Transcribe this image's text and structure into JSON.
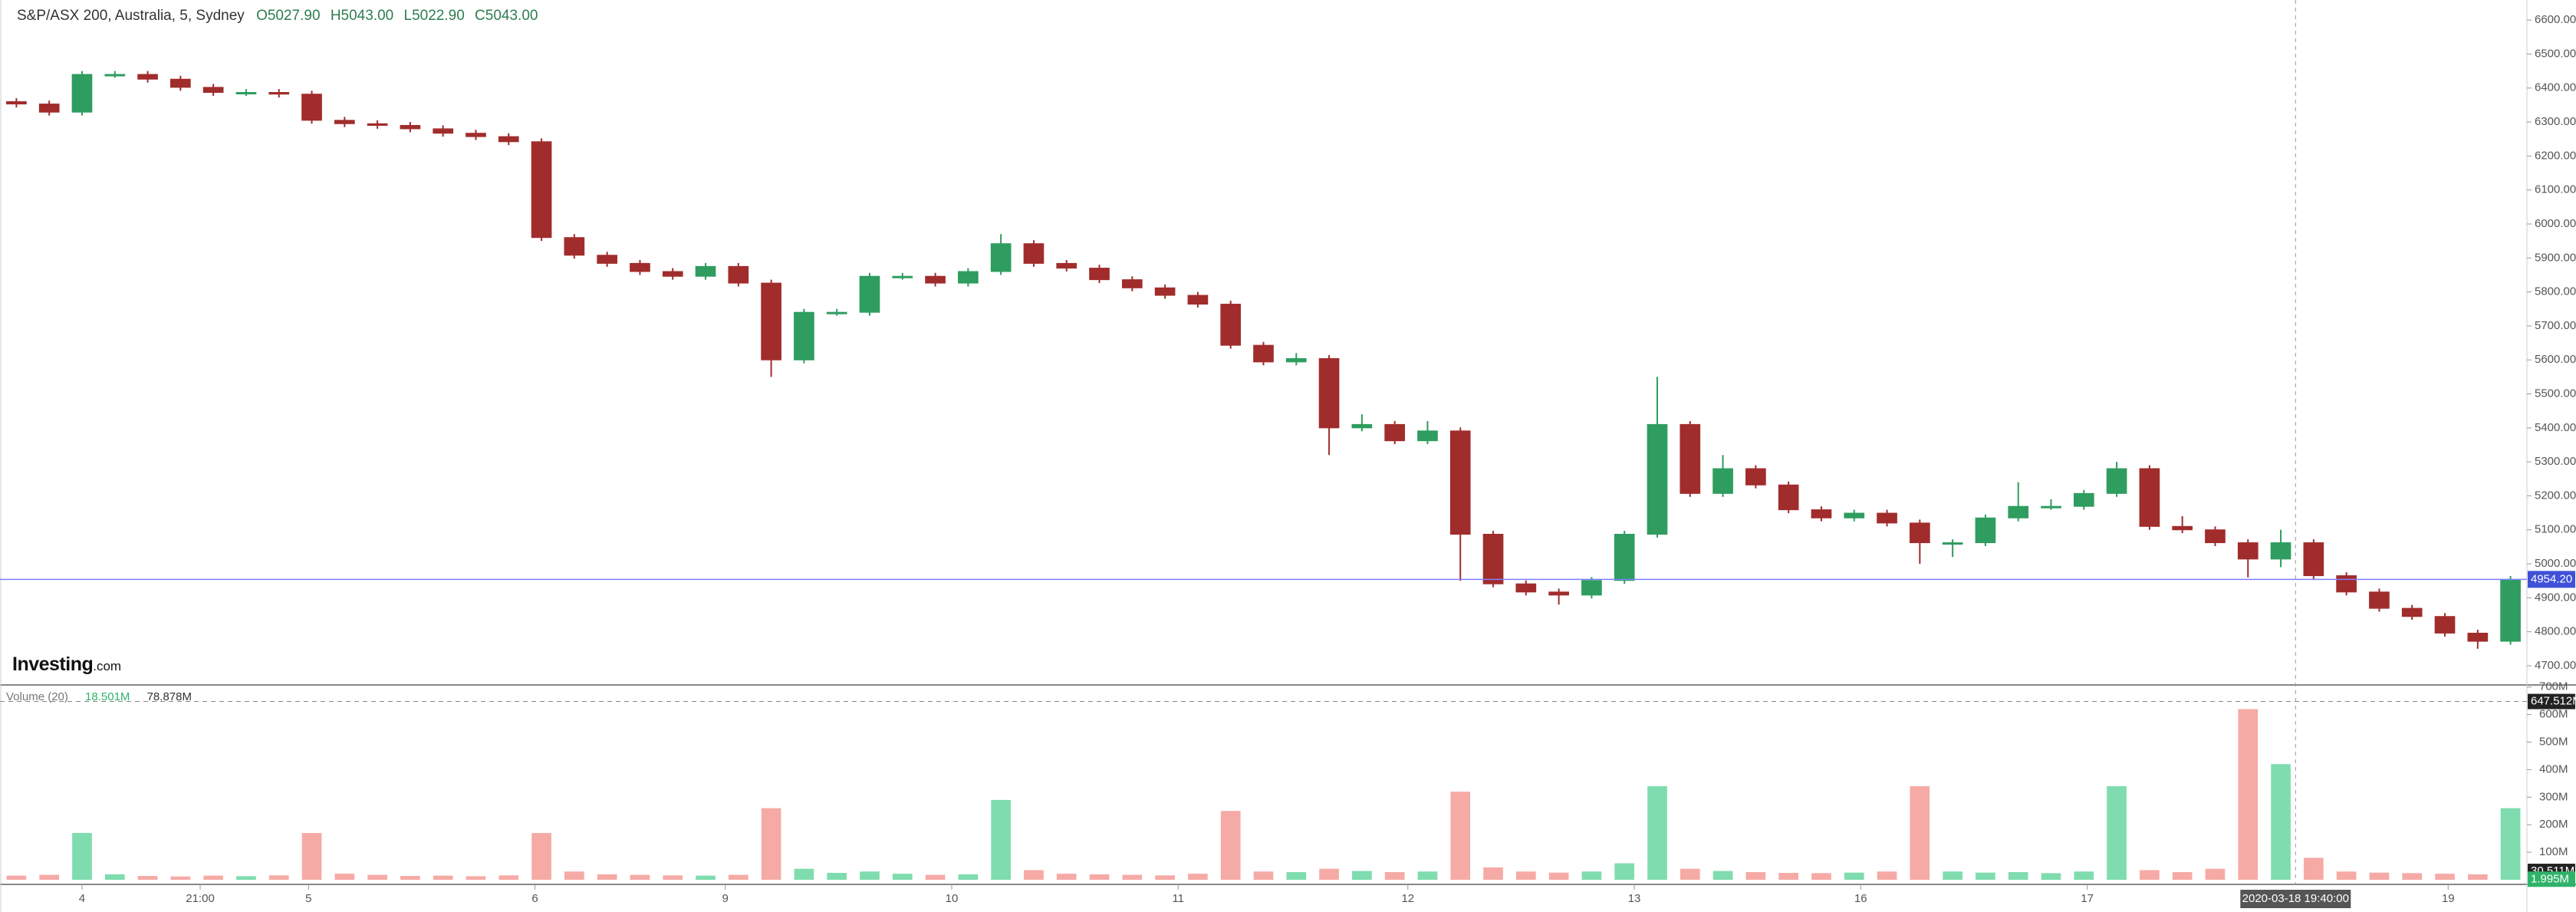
{
  "chart_data": {
    "type": "candlestick",
    "title": "S&P/ASX 200, Australia, 5, Sydney",
    "header": {
      "open": "O5027.90",
      "high": "H5043.00",
      "low": "L5022.90",
      "close": "C5043.00"
    },
    "logo": {
      "brand": "Investing",
      "suffix": ".com"
    },
    "volume_legend": {
      "name": "Volume (20)",
      "value": "18.501M",
      "average": "78.878M"
    },
    "colors": {
      "up": "#2e9d5f",
      "down": "#a12c2c",
      "volume_up": "#7fdcae",
      "volume_down": "#f6aaa6",
      "last_price": "#7f7fff"
    },
    "open": [
      6360,
      6353,
      6329,
      6440,
      6440,
      6426,
      6402,
      6387,
      6387,
      6382,
      6305,
      6295,
      6290,
      6280,
      6267,
      6257,
      6242,
      5960,
      5908,
      5884,
      5860,
      5846,
      5875,
      5826,
      5600,
      5740,
      5740,
      5846,
      5846,
      5826,
      5860,
      5942,
      5884,
      5870,
      5836,
      5812,
      5790,
      5764,
      5643,
      5594,
      5604,
      5400,
      5410,
      5362,
      5391,
      5087,
      4941,
      4917,
      4908,
      4951,
      5087,
      5410,
      5207,
      5280,
      5232,
      5159,
      5135,
      5149,
      5120,
      5062,
      5062,
      5135,
      5169,
      5169,
      5207,
      5280,
      5110,
      5100,
      5062,
      5014,
      5062,
      4965,
      4917,
      4869,
      4845,
      4796,
      4772
    ],
    "high": [
      6370,
      6363,
      6450,
      6450,
      6450,
      6436,
      6412,
      6397,
      6397,
      6392,
      6315,
      6305,
      6300,
      6290,
      6277,
      6267,
      6252,
      5970,
      5918,
      5894,
      5870,
      5885,
      5885,
      5836,
      5750,
      5750,
      5856,
      5856,
      5856,
      5870,
      5970,
      5952,
      5894,
      5880,
      5846,
      5822,
      5800,
      5774,
      5653,
      5620,
      5614,
      5440,
      5420,
      5420,
      5401,
      5097,
      4951,
      4927,
      4961,
      5097,
      5550,
      5420,
      5320,
      5290,
      5242,
      5169,
      5159,
      5159,
      5130,
      5072,
      5145,
      5240,
      5190,
      5217,
      5300,
      5290,
      5140,
      5110,
      5072,
      5100,
      5072,
      4975,
      4927,
      4879,
      4855,
      4806,
      4964
    ],
    "low": [
      6343,
      6319,
      6319,
      6430,
      6416,
      6392,
      6377,
      6377,
      6372,
      6295,
      6285,
      6280,
      6270,
      6257,
      6247,
      6232,
      5950,
      5898,
      5874,
      5850,
      5836,
      5836,
      5816,
      5550,
      5590,
      5730,
      5730,
      5836,
      5816,
      5816,
      5850,
      5874,
      5860,
      5826,
      5802,
      5780,
      5754,
      5633,
      5584,
      5584,
      5320,
      5390,
      5352,
      5352,
      4950,
      4931,
      4907,
      4880,
      4898,
      4941,
      5077,
      5197,
      5197,
      5222,
      5149,
      5125,
      5125,
      5110,
      5000,
      5020,
      5052,
      5125,
      5159,
      5159,
      5197,
      5100,
      5090,
      5052,
      4960,
      4990,
      4955,
      4907,
      4859,
      4835,
      4786,
      4750,
      4762
    ],
    "close": [
      6353,
      6329,
      6440,
      6440,
      6426,
      6402,
      6387,
      6387,
      6382,
      6305,
      6295,
      6290,
      6280,
      6267,
      6257,
      6242,
      5960,
      5908,
      5884,
      5860,
      5846,
      5875,
      5826,
      5600,
      5740,
      5740,
      5846,
      5846,
      5826,
      5860,
      5942,
      5884,
      5870,
      5836,
      5812,
      5790,
      5764,
      5643,
      5594,
      5604,
      5400,
      5410,
      5362,
      5391,
      5087,
      4941,
      4917,
      4908,
      4951,
      5087,
      5410,
      5207,
      5280,
      5232,
      5159,
      5135,
      5149,
      5120,
      5062,
      5062,
      5135,
      5169,
      5169,
      5207,
      5280,
      5110,
      5100,
      5062,
      5014,
      5062,
      4965,
      4917,
      4869,
      4845,
      4796,
      4772,
      4954
    ],
    "volume": [
      15000000,
      18000000,
      170000000,
      20000000,
      14000000,
      12000000,
      15000000,
      13000000,
      16000000,
      170000000,
      22000000,
      18000000,
      14000000,
      15000000,
      13000000,
      16000000,
      170000000,
      30000000,
      20000000,
      18000000,
      16000000,
      15000000,
      18000000,
      260000000,
      40000000,
      25000000,
      30000000,
      22000000,
      18000000,
      20000000,
      290000000,
      35000000,
      22000000,
      20000000,
      18000000,
      16000000,
      22000000,
      250000000,
      30000000,
      28000000,
      40000000,
      32000000,
      28000000,
      30000000,
      320000000,
      45000000,
      30000000,
      26000000,
      30000000,
      60000000,
      340000000,
      40000000,
      32000000,
      28000000,
      25000000,
      24000000,
      26000000,
      30000000,
      340000000,
      30000000,
      26000000,
      28000000,
      24000000,
      30000000,
      340000000,
      35000000,
      28000000,
      40000000,
      620000000,
      420000000,
      80000000,
      30000000,
      26000000,
      24000000,
      22000000,
      20000000,
      260000000
    ],
    "xlim": [
      -0.5,
      76.5
    ],
    "xticks": [
      {
        "value": 2,
        "label": "4"
      },
      {
        "value": 5.6,
        "label": "21:00"
      },
      {
        "value": 8.9,
        "label": "5"
      },
      {
        "value": 15.8,
        "label": "6"
      },
      {
        "value": 21.6,
        "label": "9"
      },
      {
        "value": 28.5,
        "label": "10"
      },
      {
        "value": 35.4,
        "label": "11"
      },
      {
        "value": 42.4,
        "label": "12"
      },
      {
        "value": 49.3,
        "label": "13"
      },
      {
        "value": 56.2,
        "label": "16"
      },
      {
        "value": 63.1,
        "label": "17"
      },
      {
        "value": 74.1,
        "label": "19"
      }
    ],
    "crosshair": {
      "value": 69.45,
      "label": "2020-03-18 19:40:00"
    },
    "ylim": [
      4648,
      6659
    ],
    "yticks": [
      {
        "value": 4700,
        "label": "4700.00"
      },
      {
        "value": 4800,
        "label": "4800.00"
      },
      {
        "value": 4900,
        "label": "4900.00"
      },
      {
        "value": 5000,
        "label": "5000.00"
      },
      {
        "value": 5100,
        "label": "5100.00"
      },
      {
        "value": 5200,
        "label": "5200.00"
      },
      {
        "value": 5300,
        "label": "5300.00"
      },
      {
        "value": 5400,
        "label": "5400.00"
      },
      {
        "value": 5500,
        "label": "5500.00"
      },
      {
        "value": 5600,
        "label": "5600.00"
      },
      {
        "value": 5700,
        "label": "5700.00"
      },
      {
        "value": 5800,
        "label": "5800.00"
      },
      {
        "value": 5900,
        "label": "5900.00"
      },
      {
        "value": 6000,
        "label": "6000.00"
      },
      {
        "value": 6100,
        "label": "6100.00"
      },
      {
        "value": 6200,
        "label": "6200.00"
      },
      {
        "value": 6300,
        "label": "6300.00"
      },
      {
        "value": 6400,
        "label": "6400.00"
      },
      {
        "value": 6500,
        "label": "6500.00"
      },
      {
        "value": 6600,
        "label": "6600.00"
      }
    ],
    "last_price": {
      "value": 4954.2,
      "label": "4954.20"
    },
    "volume_ylim": [
      0,
      702000000
    ],
    "volume_yticks": [
      {
        "value": 100000000,
        "label": "100M"
      },
      {
        "value": 200000000,
        "label": "200M"
      },
      {
        "value": 300000000,
        "label": "300M"
      },
      {
        "value": 400000000,
        "label": "400M"
      },
      {
        "value": 500000000,
        "label": "500M"
      },
      {
        "value": 600000000,
        "label": "600M"
      },
      {
        "value": 700000000,
        "label": "700M"
      }
    ],
    "volume_markers": [
      {
        "value": 647512000,
        "label": "647.512M"
      },
      {
        "value": 30511000,
        "label": "30.511M"
      },
      {
        "value": 1995000,
        "label": "1.995M"
      }
    ]
  }
}
